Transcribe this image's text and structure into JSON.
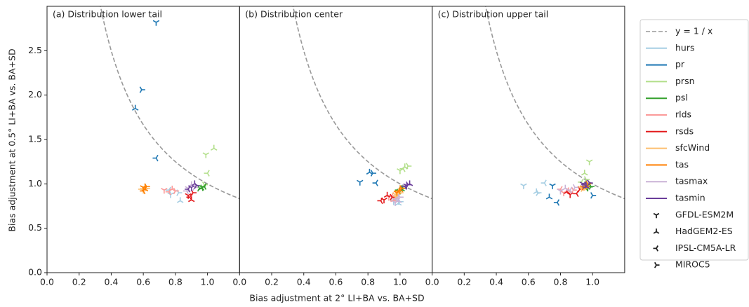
{
  "chart_data": {
    "type": "scatter",
    "xlabel": "Bias adjustment at 2° LI+BA vs. BA+SD",
    "ylabel": "Bias adjustment at 0.5° LI+BA vs. BA+SD",
    "xlim": [
      0,
      1.2
    ],
    "xticks": [
      {
        "value": 0,
        "label": "0.0"
      },
      {
        "value": 0.2,
        "label": "0.2"
      },
      {
        "value": 0.4,
        "label": "0.4"
      },
      {
        "value": 0.6,
        "label": "0.6"
      },
      {
        "value": 0.8,
        "label": "0.8"
      },
      {
        "value": 1,
        "label": "1.0"
      }
    ],
    "ylim": [
      0,
      3.0
    ],
    "yticks": [
      {
        "value": 0,
        "label": "0.0"
      },
      {
        "value": 0.5,
        "label": "0.5"
      },
      {
        "value": 1,
        "label": "1.0"
      },
      {
        "value": 1.5,
        "label": "1.5"
      },
      {
        "value": 2,
        "label": "2.0"
      },
      {
        "value": 2.5,
        "label": "2.5"
      }
    ],
    "reference": {
      "name": "y = 1 / x",
      "color": "#999999"
    },
    "variables": [
      {
        "name": "hurs",
        "color": "#a6cee3"
      },
      {
        "name": "pr",
        "color": "#1f78b4"
      },
      {
        "name": "prsn",
        "color": "#b2df8a"
      },
      {
        "name": "psl",
        "color": "#33a02c"
      },
      {
        "name": "rlds",
        "color": "#fb9a99"
      },
      {
        "name": "rsds",
        "color": "#e31a1c"
      },
      {
        "name": "sfcWind",
        "color": "#fdbf6f"
      },
      {
        "name": "tas",
        "color": "#ff7f00"
      },
      {
        "name": "tasmax",
        "color": "#cab2d6"
      },
      {
        "name": "tasmin",
        "color": "#6a3d9a"
      }
    ],
    "models": [
      {
        "name": "GFDL-ESM2M",
        "marker": "tri_down"
      },
      {
        "name": "HadGEM2-ES",
        "marker": "tri_up"
      },
      {
        "name": "IPSL-CM5A-LR",
        "marker": "tri_left"
      },
      {
        "name": "MIROC5",
        "marker": "tri_right"
      }
    ],
    "panels": [
      {
        "title": "(a) Distribution lower tail",
        "series": [
          {
            "x": [
              0.77,
              0.83,
              0.76,
              0.82
            ],
            "y": [
              0.88,
              0.81,
              0.93,
              0.9
            ]
          },
          {
            "x": [
              0.68,
              0.55,
              0.68,
              0.59
            ],
            "y": [
              2.82,
              1.85,
              1.29,
              2.06
            ]
          },
          {
            "x": [
              0.99,
              1.04,
              1.0,
              0.98
            ],
            "y": [
              1.33,
              1.4,
              1.12,
              0.99
            ]
          },
          {
            "x": [
              0.97,
              0.96,
              0.98,
              0.95
            ],
            "y": [
              0.96,
              0.95,
              0.97,
              0.95
            ]
          },
          {
            "x": [
              0.73,
              0.78,
              0.76,
              0.8
            ],
            "y": [
              0.93,
              0.94,
              0.91,
              0.92
            ]
          },
          {
            "x": [
              0.88,
              0.9,
              0.89,
              0.91
            ],
            "y": [
              0.87,
              0.82,
              0.85,
              0.9
            ]
          },
          {
            "x": [
              0.6,
              0.61,
              0.59,
              0.62
            ],
            "y": [
              0.93,
              0.96,
              0.94,
              0.95
            ]
          },
          {
            "x": [
              0.6,
              0.61,
              0.6,
              0.62
            ],
            "y": [
              0.96,
              0.94,
              0.92,
              0.97
            ]
          },
          {
            "x": [
              0.88,
              0.9,
              0.87,
              0.92
            ],
            "y": [
              0.95,
              0.99,
              0.92,
              0.96
            ]
          },
          {
            "x": [
              0.9,
              0.92,
              0.88,
              0.93
            ],
            "y": [
              0.96,
              1.0,
              0.94,
              0.98
            ]
          }
        ]
      },
      {
        "title": "(b) Distribution center",
        "series": [
          {
            "x": [
              0.96,
              0.99,
              0.97,
              1.0
            ],
            "y": [
              0.8,
              0.78,
              0.83,
              0.8
            ]
          },
          {
            "x": [
              0.75,
              0.81,
              0.85,
              0.83
            ],
            "y": [
              1.02,
              1.13,
              1.01,
              1.12
            ]
          },
          {
            "x": [
              1.0,
              1.03,
              1.02,
              1.05
            ],
            "y": [
              1.15,
              1.19,
              1.17,
              1.2
            ]
          },
          {
            "x": [
              1.0,
              1.01,
              0.99,
              1.02
            ],
            "y": [
              0.92,
              0.94,
              0.93,
              0.95
            ]
          },
          {
            "x": [
              0.93,
              0.96,
              0.95,
              0.97
            ],
            "y": [
              0.85,
              0.82,
              0.87,
              0.84
            ]
          },
          {
            "x": [
              0.9,
              0.92,
              0.88,
              0.95
            ],
            "y": [
              0.82,
              0.87,
              0.81,
              0.85
            ]
          },
          {
            "x": [
              0.97,
              0.99,
              0.98,
              1.0
            ],
            "y": [
              0.88,
              0.91,
              0.86,
              0.9
            ]
          },
          {
            "x": [
              0.98,
              1.0,
              0.99,
              1.01
            ],
            "y": [
              0.9,
              0.93,
              0.92,
              0.95
            ]
          },
          {
            "x": [
              0.97,
              0.99,
              0.98,
              1.0
            ],
            "y": [
              0.79,
              0.81,
              0.83,
              0.85
            ]
          },
          {
            "x": [
              1.04,
              1.06,
              1.03,
              1.05
            ],
            "y": [
              0.98,
              1.0,
              0.97,
              0.99
            ]
          }
        ]
      },
      {
        "title": "(c) Distribution upper tail",
        "series": [
          {
            "x": [
              0.57,
              0.65,
              0.7,
              0.66
            ],
            "y": [
              0.98,
              0.91,
              1.01,
              0.9
            ]
          },
          {
            "x": [
              0.75,
              0.73,
              0.78,
              1.0
            ],
            "y": [
              0.98,
              0.85,
              0.79,
              0.87
            ]
          },
          {
            "x": [
              0.98,
              0.95,
              0.93,
              0.96
            ],
            "y": [
              1.25,
              1.12,
              1.02,
              1.05
            ]
          },
          {
            "x": [
              0.97,
              0.98,
              0.96,
              0.99
            ],
            "y": [
              0.96,
              0.98,
              0.95,
              0.97
            ]
          },
          {
            "x": [
              0.82,
              0.85,
              0.8,
              0.88
            ],
            "y": [
              0.9,
              0.92,
              0.94,
              0.93
            ]
          },
          {
            "x": [
              0.86,
              0.84,
              0.9,
              0.92
            ],
            "y": [
              0.88,
              0.91,
              0.89,
              0.94
            ]
          },
          {
            "x": [
              0.93,
              0.95,
              0.94,
              0.96
            ],
            "y": [
              0.95,
              0.97,
              0.96,
              0.98
            ]
          },
          {
            "x": [
              0.94,
              0.96,
              0.95,
              0.97
            ],
            "y": [
              0.96,
              0.98,
              0.97,
              1.0
            ]
          },
          {
            "x": [
              0.8,
              0.83,
              0.86,
              0.89
            ],
            "y": [
              0.92,
              0.95,
              0.93,
              0.96
            ]
          },
          {
            "x": [
              0.94,
              0.96,
              0.95,
              0.98
            ],
            "y": [
              1.0,
              0.97,
              0.99,
              1.01
            ]
          }
        ]
      }
    ]
  }
}
